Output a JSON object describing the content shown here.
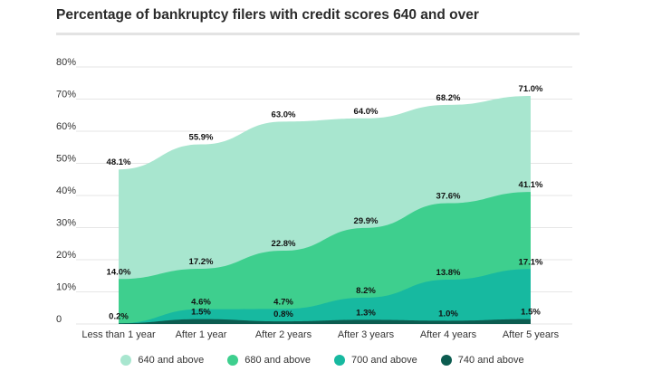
{
  "title": "Percentage of bankruptcy filers with credit scores 640 and over",
  "chart_data": {
    "type": "area",
    "categories": [
      "Less than 1 year",
      "After 1 year",
      "After 2 years",
      "After 3 years",
      "After 4 years",
      "After 5 years"
    ],
    "yticks": [
      "0",
      "10%",
      "20%",
      "30%",
      "40%",
      "50%",
      "60%",
      "70%",
      "80%"
    ],
    "ylim": [
      0,
      80
    ],
    "grid": true,
    "legend_position": "bottom",
    "series": [
      {
        "name": "640 and above",
        "color": "#a8e6cf",
        "values": [
          48.1,
          55.9,
          63.0,
          64.0,
          68.2,
          71.0
        ],
        "labels": [
          "48.1%",
          "55.9%",
          "63.0%",
          "64.0%",
          "68.2%",
          "71.0%"
        ]
      },
      {
        "name": "680 and above",
        "color": "#3ecf8e",
        "values": [
          14.0,
          17.2,
          22.8,
          29.9,
          37.6,
          41.1
        ],
        "labels": [
          "14.0%",
          "17.2%",
          "22.8%",
          "29.9%",
          "37.6%",
          "41.1%"
        ]
      },
      {
        "name": "700 and above",
        "color": "#17b9a0",
        "values": [
          0.2,
          4.6,
          4.7,
          8.2,
          13.8,
          17.1
        ],
        "labels": [
          "0.2%",
          "4.6%",
          "4.7%",
          "8.2%",
          "13.8%",
          "17.1%"
        ]
      },
      {
        "name": "740 and above",
        "color": "#0c5c50",
        "values": [
          0.2,
          1.5,
          0.8,
          1.3,
          1.0,
          1.5
        ],
        "labels": [
          "",
          "1.5%",
          "0.8%",
          "1.3%",
          "1.0%",
          "1.5%"
        ]
      }
    ]
  }
}
